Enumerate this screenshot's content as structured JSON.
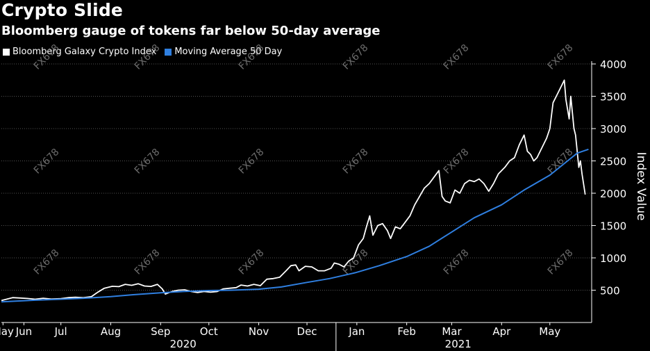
{
  "title": "Crypto Slide",
  "subtitle": "Bloomberg gauge of tokens far below 50-day average",
  "colors": {
    "background": "#000000",
    "index": "#ffffff",
    "ma": "#2f7fe0",
    "grid": "#555555",
    "watermark": "#888888"
  },
  "watermark": "FX678",
  "chart_data": {
    "type": "line",
    "ylabel": "Index Value",
    "ylim": [
      0,
      4000
    ],
    "yticks": [
      500,
      1000,
      1500,
      2000,
      2500,
      3000,
      3500,
      4000
    ],
    "x_range": [
      "2020-05-25",
      "2021-05-27"
    ],
    "month_ticks": [
      {
        "label": "May",
        "date": "2020-05-26"
      },
      {
        "label": "Jun",
        "date": "2020-06-08"
      },
      {
        "label": "Jul",
        "date": "2020-07-01"
      },
      {
        "label": "Aug",
        "date": "2020-08-01"
      },
      {
        "label": "Sep",
        "date": "2020-09-01"
      },
      {
        "label": "Oct",
        "date": "2020-10-01"
      },
      {
        "label": "Nov",
        "date": "2020-11-01"
      },
      {
        "label": "Dec",
        "date": "2020-12-01"
      },
      {
        "label": "Jan",
        "date": "2021-01-01"
      },
      {
        "label": "Feb",
        "date": "2021-02-01"
      },
      {
        "label": "Mar",
        "date": "2021-03-01"
      },
      {
        "label": "Apr",
        "date": "2021-04-01"
      },
      {
        "label": "May",
        "date": "2021-05-01"
      }
    ],
    "years": [
      {
        "label": "2020",
        "center": "2020-09-15"
      },
      {
        "label": "2021",
        "center": "2021-03-05"
      }
    ],
    "legend_position": "top-left",
    "series": [
      {
        "name": "Bloomberg Galaxy Crypto Index",
        "color": "#ffffff",
        "points": [
          [
            "2020-05-25",
            340
          ],
          [
            "2020-06-01",
            385
          ],
          [
            "2020-06-05",
            380
          ],
          [
            "2020-06-10",
            372
          ],
          [
            "2020-06-15",
            360
          ],
          [
            "2020-06-20",
            375
          ],
          [
            "2020-06-25",
            362
          ],
          [
            "2020-07-01",
            370
          ],
          [
            "2020-07-06",
            385
          ],
          [
            "2020-07-10",
            390
          ],
          [
            "2020-07-15",
            384
          ],
          [
            "2020-07-20",
            400
          ],
          [
            "2020-07-24",
            470
          ],
          [
            "2020-07-28",
            530
          ],
          [
            "2020-08-02",
            560
          ],
          [
            "2020-08-06",
            555
          ],
          [
            "2020-08-10",
            590
          ],
          [
            "2020-08-14",
            575
          ],
          [
            "2020-08-18",
            600
          ],
          [
            "2020-08-22",
            565
          ],
          [
            "2020-08-26",
            558
          ],
          [
            "2020-08-30",
            590
          ],
          [
            "2020-09-02",
            520
          ],
          [
            "2020-09-04",
            440
          ],
          [
            "2020-09-08",
            480
          ],
          [
            "2020-09-12",
            500
          ],
          [
            "2020-09-16",
            505
          ],
          [
            "2020-09-20",
            480
          ],
          [
            "2020-09-24",
            465
          ],
          [
            "2020-09-28",
            480
          ],
          [
            "2020-10-02",
            470
          ],
          [
            "2020-10-06",
            478
          ],
          [
            "2020-10-10",
            520
          ],
          [
            "2020-10-14",
            530
          ],
          [
            "2020-10-18",
            540
          ],
          [
            "2020-10-21",
            580
          ],
          [
            "2020-10-25",
            565
          ],
          [
            "2020-10-29",
            590
          ],
          [
            "2020-11-02",
            570
          ],
          [
            "2020-11-06",
            670
          ],
          [
            "2020-11-10",
            680
          ],
          [
            "2020-11-14",
            700
          ],
          [
            "2020-11-18",
            800
          ],
          [
            "2020-11-21",
            880
          ],
          [
            "2020-11-24",
            890
          ],
          [
            "2020-11-26",
            800
          ],
          [
            "2020-11-30",
            870
          ],
          [
            "2020-12-04",
            860
          ],
          [
            "2020-12-08",
            800
          ],
          [
            "2020-12-12",
            800
          ],
          [
            "2020-12-16",
            840
          ],
          [
            "2020-12-18",
            920
          ],
          [
            "2020-12-21",
            900
          ],
          [
            "2020-12-24",
            860
          ],
          [
            "2020-12-27",
            950
          ],
          [
            "2020-12-30",
            1000
          ],
          [
            "2021-01-02",
            1200
          ],
          [
            "2021-01-05",
            1300
          ],
          [
            "2021-01-07",
            1480
          ],
          [
            "2021-01-09",
            1650
          ],
          [
            "2021-01-11",
            1350
          ],
          [
            "2021-01-14",
            1500
          ],
          [
            "2021-01-17",
            1530
          ],
          [
            "2021-01-20",
            1420
          ],
          [
            "2021-01-22",
            1300
          ],
          [
            "2021-01-25",
            1480
          ],
          [
            "2021-01-28",
            1450
          ],
          [
            "2021-01-31",
            1550
          ],
          [
            "2021-02-03",
            1650
          ],
          [
            "2021-02-06",
            1820
          ],
          [
            "2021-02-09",
            1950
          ],
          [
            "2021-02-12",
            2080
          ],
          [
            "2021-02-15",
            2150
          ],
          [
            "2021-02-18",
            2250
          ],
          [
            "2021-02-21",
            2350
          ],
          [
            "2021-02-23",
            1950
          ],
          [
            "2021-02-25",
            1880
          ],
          [
            "2021-02-28",
            1850
          ],
          [
            "2021-03-03",
            2050
          ],
          [
            "2021-03-06",
            2000
          ],
          [
            "2021-03-09",
            2150
          ],
          [
            "2021-03-12",
            2200
          ],
          [
            "2021-03-15",
            2180
          ],
          [
            "2021-03-18",
            2220
          ],
          [
            "2021-03-21",
            2150
          ],
          [
            "2021-03-24",
            2030
          ],
          [
            "2021-03-27",
            2150
          ],
          [
            "2021-03-30",
            2300
          ],
          [
            "2021-04-03",
            2400
          ],
          [
            "2021-04-06",
            2500
          ],
          [
            "2021-04-09",
            2550
          ],
          [
            "2021-04-12",
            2750
          ],
          [
            "2021-04-15",
            2900
          ],
          [
            "2021-04-17",
            2650
          ],
          [
            "2021-04-19",
            2600
          ],
          [
            "2021-04-21",
            2500
          ],
          [
            "2021-04-23",
            2550
          ],
          [
            "2021-04-26",
            2700
          ],
          [
            "2021-04-29",
            2850
          ],
          [
            "2021-05-01",
            3000
          ],
          [
            "2021-05-03",
            3400
          ],
          [
            "2021-05-06",
            3550
          ],
          [
            "2021-05-08",
            3650
          ],
          [
            "2021-05-10",
            3750
          ],
          [
            "2021-05-11",
            3450
          ],
          [
            "2021-05-13",
            3150
          ],
          [
            "2021-05-14",
            3500
          ],
          [
            "2021-05-16",
            3000
          ],
          [
            "2021-05-17",
            2900
          ],
          [
            "2021-05-19",
            2400
          ],
          [
            "2021-05-20",
            2500
          ],
          [
            "2021-05-21",
            2300
          ],
          [
            "2021-05-23",
            1980
          ]
        ]
      },
      {
        "name": "Moving Average 50 Day",
        "color": "#2f7fe0",
        "points": [
          [
            "2020-05-25",
            320
          ],
          [
            "2020-06-15",
            345
          ],
          [
            "2020-07-01",
            360
          ],
          [
            "2020-07-15",
            375
          ],
          [
            "2020-08-01",
            400
          ],
          [
            "2020-08-15",
            430
          ],
          [
            "2020-09-01",
            460
          ],
          [
            "2020-09-15",
            480
          ],
          [
            "2020-10-01",
            495
          ],
          [
            "2020-10-15",
            500
          ],
          [
            "2020-11-01",
            515
          ],
          [
            "2020-11-15",
            550
          ],
          [
            "2020-12-01",
            620
          ],
          [
            "2020-12-15",
            680
          ],
          [
            "2020-12-31",
            770
          ],
          [
            "2021-01-15",
            880
          ],
          [
            "2021-02-01",
            1020
          ],
          [
            "2021-02-15",
            1180
          ],
          [
            "2021-03-01",
            1400
          ],
          [
            "2021-03-15",
            1620
          ],
          [
            "2021-04-01",
            1820
          ],
          [
            "2021-04-15",
            2050
          ],
          [
            "2021-05-01",
            2280
          ],
          [
            "2021-05-12",
            2500
          ],
          [
            "2021-05-18",
            2620
          ],
          [
            "2021-05-25",
            2680
          ]
        ]
      }
    ]
  }
}
